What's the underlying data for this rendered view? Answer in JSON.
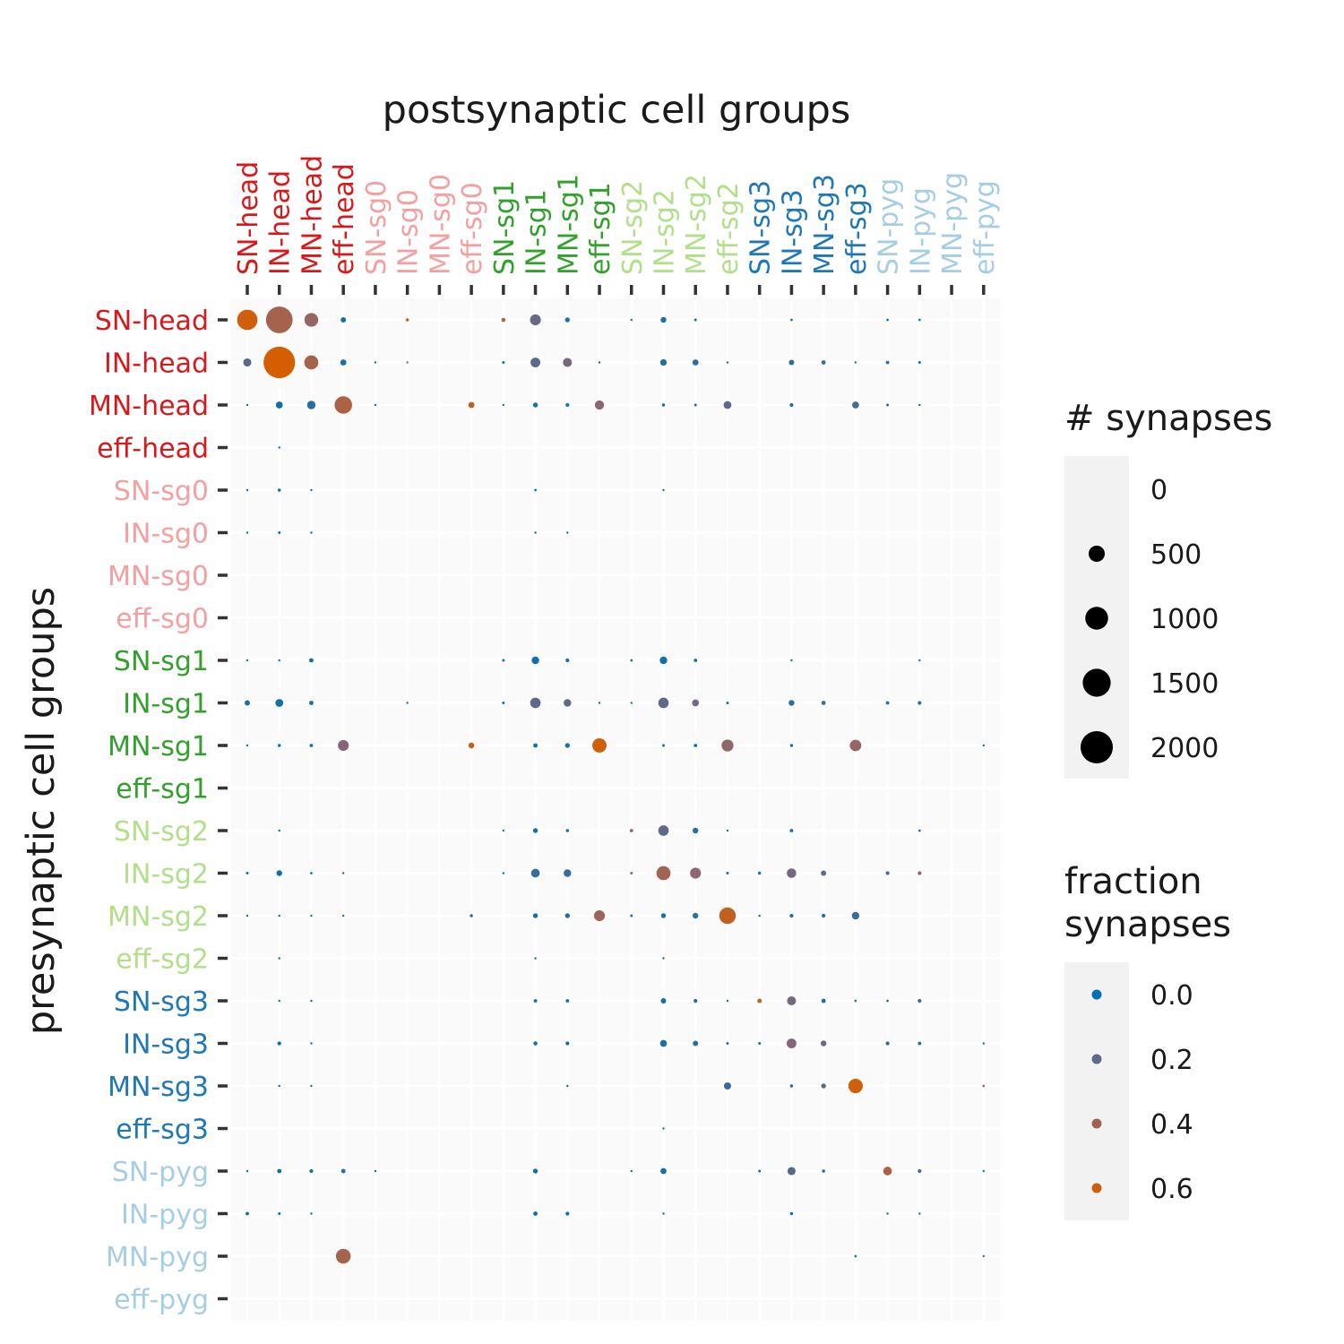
{
  "chart_data": {
    "type": "scatter",
    "title": "",
    "xlabel": "postsynaptic cell groups",
    "ylabel": "presynaptic cell groups",
    "x_categories": [
      "SN-head",
      "IN-head",
      "MN-head",
      "eff-head",
      "SN-sg0",
      "IN-sg0",
      "MN-sg0",
      "eff-sg0",
      "SN-sg1",
      "IN-sg1",
      "MN-sg1",
      "eff-sg1",
      "SN-sg2",
      "IN-sg2",
      "MN-sg2",
      "eff-sg2",
      "SN-sg3",
      "IN-sg3",
      "MN-sg3",
      "eff-sg3",
      "SN-pyg",
      "IN-pyg",
      "MN-pyg",
      "eff-pyg"
    ],
    "y_categories": [
      "SN-head",
      "IN-head",
      "MN-head",
      "eff-head",
      "SN-sg0",
      "IN-sg0",
      "MN-sg0",
      "eff-sg0",
      "SN-sg1",
      "IN-sg1",
      "MN-sg1",
      "eff-sg1",
      "SN-sg2",
      "IN-sg2",
      "MN-sg2",
      "eff-sg2",
      "SN-sg3",
      "IN-sg3",
      "MN-sg3",
      "eff-sg3",
      "SN-pyg",
      "IN-pyg",
      "MN-pyg",
      "eff-pyg"
    ],
    "group_colors": {
      "head": "#d7191c",
      "sg0": "#f4a0a0",
      "sg1": "#33a02c",
      "sg2": "#b2df8a",
      "sg3": "#1f78b4",
      "pyg": "#a6cee3"
    },
    "color_low": "#0072b2",
    "color_mid": "#8c6675",
    "color_high": "#d55e00",
    "points_note_columns": [
      "row",
      "col",
      "synapses",
      "fraction"
    ],
    "points": [
      [
        0,
        0,
        880,
        0.62
      ],
      [
        0,
        1,
        1500,
        0.42
      ],
      [
        0,
        2,
        400,
        0.35
      ],
      [
        0,
        3,
        60,
        0.05
      ],
      [
        0,
        5,
        20,
        0.6
      ],
      [
        0,
        8,
        35,
        0.45
      ],
      [
        0,
        9,
        250,
        0.22
      ],
      [
        0,
        10,
        50,
        0.08
      ],
      [
        0,
        12,
        5,
        0.03
      ],
      [
        0,
        13,
        70,
        0.06
      ],
      [
        0,
        14,
        15,
        0.03
      ],
      [
        0,
        17,
        12,
        0.02
      ],
      [
        0,
        20,
        12,
        0.02
      ],
      [
        0,
        21,
        12,
        0.02
      ],
      [
        1,
        0,
        140,
        0.18
      ],
      [
        1,
        1,
        2100,
        0.65
      ],
      [
        1,
        2,
        420,
        0.42
      ],
      [
        1,
        3,
        80,
        0.06
      ],
      [
        1,
        4,
        8,
        0.02
      ],
      [
        1,
        5,
        10,
        0.3
      ],
      [
        1,
        8,
        15,
        0.05
      ],
      [
        1,
        9,
        200,
        0.2
      ],
      [
        1,
        10,
        170,
        0.25
      ],
      [
        1,
        11,
        8,
        0.02
      ],
      [
        1,
        13,
        90,
        0.06
      ],
      [
        1,
        14,
        80,
        0.1
      ],
      [
        1,
        15,
        10,
        0.02
      ],
      [
        1,
        17,
        60,
        0.08
      ],
      [
        1,
        18,
        40,
        0.12
      ],
      [
        1,
        19,
        5,
        0.05
      ],
      [
        1,
        20,
        25,
        0.05
      ],
      [
        1,
        21,
        15,
        0.03
      ],
      [
        2,
        0,
        8,
        0.02
      ],
      [
        2,
        1,
        100,
        0.03
      ],
      [
        2,
        2,
        150,
        0.08
      ],
      [
        2,
        3,
        650,
        0.45
      ],
      [
        2,
        4,
        5,
        0.02
      ],
      [
        2,
        7,
        80,
        0.55
      ],
      [
        2,
        8,
        5,
        0.02
      ],
      [
        2,
        9,
        50,
        0.05
      ],
      [
        2,
        10,
        30,
        0.05
      ],
      [
        2,
        11,
        180,
        0.3
      ],
      [
        2,
        13,
        20,
        0.03
      ],
      [
        2,
        14,
        15,
        0.03
      ],
      [
        2,
        15,
        130,
        0.2
      ],
      [
        2,
        17,
        30,
        0.05
      ],
      [
        2,
        19,
        100,
        0.15
      ],
      [
        2,
        20,
        15,
        0.03
      ],
      [
        2,
        21,
        10,
        0.02
      ],
      [
        3,
        1,
        2,
        0.02
      ],
      [
        4,
        0,
        8,
        0.01
      ],
      [
        4,
        1,
        20,
        0.01
      ],
      [
        4,
        2,
        4,
        0.01
      ],
      [
        4,
        9,
        12,
        0.01
      ],
      [
        4,
        13,
        3,
        0.01
      ],
      [
        5,
        0,
        10,
        0.01
      ],
      [
        5,
        1,
        15,
        0.01
      ],
      [
        5,
        2,
        10,
        0.01
      ],
      [
        5,
        9,
        8,
        0.01
      ],
      [
        5,
        10,
        6,
        0.01
      ],
      [
        8,
        0,
        10,
        0.02
      ],
      [
        8,
        1,
        8,
        0.01
      ],
      [
        8,
        2,
        40,
        0.04
      ],
      [
        8,
        8,
        15,
        0.02
      ],
      [
        8,
        9,
        120,
        0.03
      ],
      [
        8,
        10,
        30,
        0.04
      ],
      [
        8,
        12,
        12,
        0.02
      ],
      [
        8,
        13,
        120,
        0.04
      ],
      [
        8,
        14,
        25,
        0.03
      ],
      [
        8,
        17,
        10,
        0.02
      ],
      [
        8,
        21,
        8,
        0.01
      ],
      [
        9,
        0,
        60,
        0.05
      ],
      [
        9,
        1,
        130,
        0.04
      ],
      [
        9,
        2,
        40,
        0.05
      ],
      [
        9,
        5,
        5,
        0.02
      ],
      [
        9,
        8,
        15,
        0.03
      ],
      [
        9,
        9,
        230,
        0.2
      ],
      [
        9,
        10,
        120,
        0.2
      ],
      [
        9,
        11,
        8,
        0.02
      ],
      [
        9,
        12,
        10,
        0.03
      ],
      [
        9,
        13,
        230,
        0.2
      ],
      [
        9,
        14,
        100,
        0.25
      ],
      [
        9,
        15,
        15,
        0.03
      ],
      [
        9,
        17,
        70,
        0.08
      ],
      [
        9,
        18,
        40,
        0.15
      ],
      [
        9,
        20,
        25,
        0.06
      ],
      [
        9,
        21,
        30,
        0.12
      ],
      [
        10,
        0,
        5,
        0.01
      ],
      [
        10,
        1,
        20,
        0.02
      ],
      [
        10,
        2,
        25,
        0.03
      ],
      [
        10,
        3,
        250,
        0.28
      ],
      [
        10,
        7,
        70,
        0.6
      ],
      [
        10,
        9,
        40,
        0.04
      ],
      [
        10,
        10,
        50,
        0.08
      ],
      [
        10,
        11,
        430,
        0.62
      ],
      [
        10,
        13,
        15,
        0.02
      ],
      [
        10,
        14,
        25,
        0.05
      ],
      [
        10,
        15,
        300,
        0.32
      ],
      [
        10,
        17,
        20,
        0.03
      ],
      [
        10,
        19,
        280,
        0.35
      ],
      [
        10,
        23,
        5,
        0.02
      ],
      [
        12,
        1,
        5,
        0.01
      ],
      [
        12,
        8,
        10,
        0.02
      ],
      [
        12,
        9,
        50,
        0.04
      ],
      [
        12,
        10,
        20,
        0.03
      ],
      [
        12,
        12,
        25,
        0.3
      ],
      [
        12,
        13,
        230,
        0.2
      ],
      [
        12,
        14,
        70,
        0.08
      ],
      [
        12,
        15,
        8,
        0.02
      ],
      [
        12,
        17,
        25,
        0.03
      ],
      [
        12,
        21,
        12,
        0.02
      ],
      [
        13,
        0,
        15,
        0.02
      ],
      [
        13,
        1,
        70,
        0.04
      ],
      [
        13,
        2,
        12,
        0.02
      ],
      [
        13,
        3,
        3,
        0.02
      ],
      [
        13,
        8,
        10,
        0.03
      ],
      [
        13,
        9,
        160,
        0.12
      ],
      [
        13,
        10,
        120,
        0.12
      ],
      [
        13,
        12,
        15,
        0.35
      ],
      [
        13,
        13,
        420,
        0.4
      ],
      [
        13,
        14,
        250,
        0.3
      ],
      [
        13,
        15,
        15,
        0.03
      ],
      [
        13,
        16,
        20,
        0.05
      ],
      [
        13,
        17,
        190,
        0.25
      ],
      [
        13,
        18,
        60,
        0.2
      ],
      [
        13,
        20,
        30,
        0.12
      ],
      [
        13,
        21,
        30,
        0.3
      ],
      [
        14,
        0,
        5,
        0.01
      ],
      [
        14,
        1,
        10,
        0.01
      ],
      [
        14,
        2,
        5,
        0.01
      ],
      [
        14,
        3,
        5,
        0.01
      ],
      [
        14,
        7,
        20,
        0.05
      ],
      [
        14,
        9,
        50,
        0.04
      ],
      [
        14,
        10,
        50,
        0.06
      ],
      [
        14,
        11,
        250,
        0.38
      ],
      [
        14,
        12,
        15,
        0.05
      ],
      [
        14,
        13,
        50,
        0.04
      ],
      [
        14,
        14,
        70,
        0.1
      ],
      [
        14,
        15,
        580,
        0.55
      ],
      [
        14,
        16,
        10,
        0.05
      ],
      [
        14,
        17,
        30,
        0.04
      ],
      [
        14,
        18,
        30,
        0.05
      ],
      [
        14,
        19,
        120,
        0.12
      ],
      [
        15,
        1,
        2,
        0.01
      ],
      [
        15,
        9,
        3,
        0.01
      ],
      [
        15,
        13,
        5,
        0.01
      ],
      [
        16,
        1,
        4,
        0.01
      ],
      [
        16,
        2,
        4,
        0.01
      ],
      [
        16,
        9,
        25,
        0.02
      ],
      [
        16,
        10,
        25,
        0.03
      ],
      [
        16,
        13,
        60,
        0.04
      ],
      [
        16,
        14,
        30,
        0.05
      ],
      [
        16,
        15,
        10,
        0.03
      ],
      [
        16,
        16,
        40,
        0.62
      ],
      [
        16,
        17,
        170,
        0.25
      ],
      [
        16,
        18,
        40,
        0.05
      ],
      [
        16,
        19,
        12,
        0.05
      ],
      [
        16,
        20,
        12,
        0.03
      ],
      [
        16,
        21,
        30,
        0.12
      ],
      [
        17,
        1,
        30,
        0.02
      ],
      [
        17,
        2,
        10,
        0.01
      ],
      [
        17,
        9,
        35,
        0.03
      ],
      [
        17,
        10,
        30,
        0.03
      ],
      [
        17,
        13,
        100,
        0.06
      ],
      [
        17,
        14,
        60,
        0.07
      ],
      [
        17,
        15,
        15,
        0.03
      ],
      [
        17,
        16,
        15,
        0.05
      ],
      [
        17,
        17,
        200,
        0.28
      ],
      [
        17,
        18,
        70,
        0.22
      ],
      [
        17,
        20,
        30,
        0.06
      ],
      [
        17,
        21,
        25,
        0.05
      ],
      [
        17,
        23,
        8,
        0.02
      ],
      [
        18,
        1,
        4,
        0.01
      ],
      [
        18,
        2,
        4,
        0.01
      ],
      [
        18,
        10,
        8,
        0.02
      ],
      [
        18,
        15,
        110,
        0.12
      ],
      [
        18,
        17,
        20,
        0.05
      ],
      [
        18,
        18,
        50,
        0.18
      ],
      [
        18,
        19,
        440,
        0.62
      ],
      [
        18,
        23,
        12,
        0.4
      ],
      [
        19,
        13,
        2,
        0.01
      ],
      [
        20,
        0,
        10,
        0.02
      ],
      [
        20,
        1,
        40,
        0.03
      ],
      [
        20,
        2,
        30,
        0.04
      ],
      [
        20,
        3,
        40,
        0.05
      ],
      [
        20,
        4,
        6,
        0.02
      ],
      [
        20,
        9,
        50,
        0.04
      ],
      [
        20,
        12,
        8,
        0.02
      ],
      [
        20,
        13,
        80,
        0.05
      ],
      [
        20,
        16,
        15,
        0.03
      ],
      [
        20,
        17,
        140,
        0.18
      ],
      [
        20,
        18,
        20,
        0.04
      ],
      [
        20,
        20,
        160,
        0.45
      ],
      [
        20,
        21,
        30,
        0.15
      ],
      [
        20,
        23,
        8,
        0.02
      ],
      [
        21,
        0,
        25,
        0.02
      ],
      [
        21,
        1,
        15,
        0.01
      ],
      [
        21,
        2,
        10,
        0.01
      ],
      [
        21,
        9,
        40,
        0.03
      ],
      [
        21,
        10,
        30,
        0.03
      ],
      [
        21,
        13,
        10,
        0.01
      ],
      [
        21,
        17,
        20,
        0.02
      ],
      [
        21,
        20,
        8,
        0.01
      ],
      [
        21,
        21,
        8,
        0.01
      ],
      [
        22,
        3,
        460,
        0.42
      ],
      [
        22,
        19,
        12,
        0.03
      ],
      [
        22,
        23,
        8,
        0.05
      ]
    ],
    "legend_size": {
      "title": "# synapses",
      "values": [
        0,
        500,
        1000,
        1500,
        2000
      ],
      "labels": [
        "0",
        "500",
        "1000",
        "1500",
        "2000"
      ]
    },
    "legend_color": {
      "title_line1": "fraction",
      "title_line2": "synapses",
      "values": [
        0.0,
        0.2,
        0.4,
        0.6
      ],
      "labels": [
        "0.0",
        "0.2",
        "0.4",
        "0.6"
      ]
    },
    "grid": true,
    "legend_position": "right"
  }
}
